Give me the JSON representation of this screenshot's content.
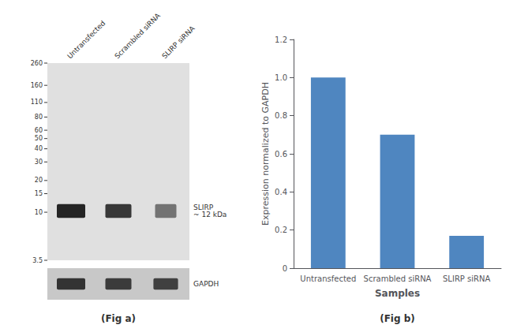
{
  "chart_data": [
    {
      "type": "blot",
      "title": "(Fig a)",
      "categories": [
        "Untransfected",
        "Scrambled siRNA",
        "SLIRP siRNA"
      ],
      "ylim": [
        3.5,
        260
      ],
      "yticks": [
        260,
        160,
        110,
        80,
        60,
        50,
        40,
        30,
        20,
        15,
        10,
        3.5
      ],
      "log": "y",
      "annotations": [
        "SLIRP\n~ 12 kDa",
        "GAPDH"
      ]
    },
    {
      "type": "bar",
      "title": "(Fig b)",
      "categories": [
        "Untransfected",
        "Scrambled siRNA",
        "SLIRP siRNA"
      ],
      "values": [
        1.0,
        0.7,
        0.17
      ],
      "color": "#4f86c0",
      "ylim": [
        0,
        1.2
      ],
      "yticks": [
        0,
        0.2,
        0.4,
        0.6,
        0.8,
        {
          "value": 1.0,
          "label": "1.0"
        },
        1.2
      ],
      "xlabel": "Samples",
      "ylabel": "Expression normalized to GAPDH",
      "grid": false
    }
  ]
}
